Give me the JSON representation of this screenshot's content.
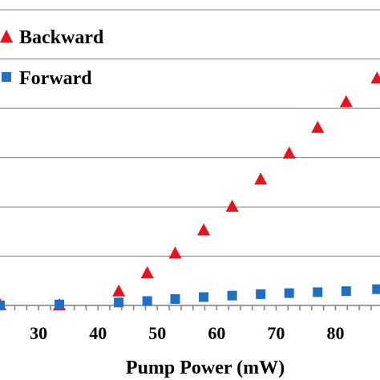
{
  "chart_data": {
    "type": "scatter",
    "xlabel": "Pump Power (mW)",
    "ylabel": "",
    "title": "",
    "xlim": [
      23.5,
      87.5
    ],
    "ylim": [
      0,
      6.15
    ],
    "x_ticks": [
      30,
      40,
      50,
      60,
      70,
      80
    ],
    "y_gridlines": [
      1,
      2,
      3,
      4,
      5,
      6
    ],
    "grid": "horizontal",
    "legend": "top-left",
    "series": [
      {
        "name": "Backward",
        "marker": "triangle",
        "color": "#e8121c",
        "x": [
          23.5,
          33.5,
          43.5,
          48.3,
          53.0,
          57.8,
          62.6,
          67.4,
          72.2,
          77.0,
          81.8,
          87.0
        ],
        "y": [
          0.0,
          0.0,
          0.28,
          0.65,
          1.05,
          1.52,
          2.0,
          2.55,
          3.08,
          3.6,
          4.12,
          4.6
        ]
      },
      {
        "name": "Forward",
        "marker": "square",
        "color": "#1f6fc5",
        "x": [
          23.5,
          33.5,
          43.5,
          48.3,
          53.0,
          57.8,
          62.6,
          67.4,
          72.2,
          77.0,
          81.8,
          87.0
        ],
        "y": [
          0.0,
          0.02,
          0.06,
          0.09,
          0.13,
          0.17,
          0.2,
          0.23,
          0.25,
          0.27,
          0.29,
          0.33
        ]
      }
    ]
  }
}
